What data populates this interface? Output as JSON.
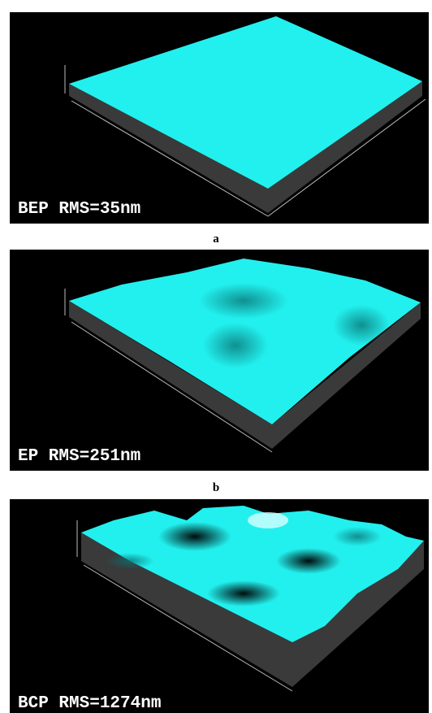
{
  "panels": [
    {
      "label": "BEP RMS=35nm",
      "caption": "a"
    },
    {
      "label": "EP RMS=251nm",
      "caption": "b"
    },
    {
      "label": "BCP RMS=1274nm"
    }
  ]
}
